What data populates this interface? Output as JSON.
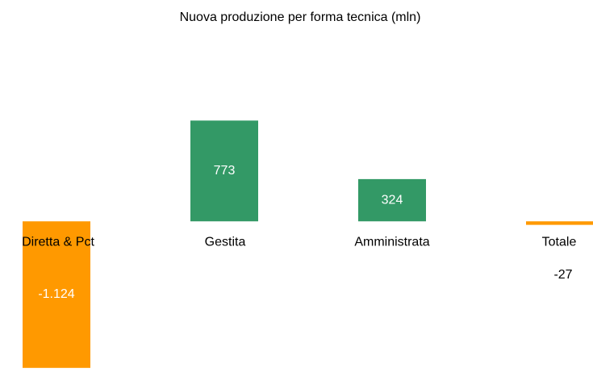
{
  "chart_data": {
    "type": "bar",
    "title": "Nuova produzione per forma tecnica (mln)",
    "categories": [
      "Diretta & Pct",
      "Gestita",
      "Amministrata",
      "Totale"
    ],
    "values": [
      -1124,
      773,
      324,
      -27
    ],
    "value_labels": [
      "-1.124",
      "773",
      "324",
      "-27"
    ],
    "colors": [
      "#ff9900",
      "#339966",
      "#339966",
      "#ff9900"
    ],
    "ylim": [
      -1150,
      1450
    ]
  }
}
